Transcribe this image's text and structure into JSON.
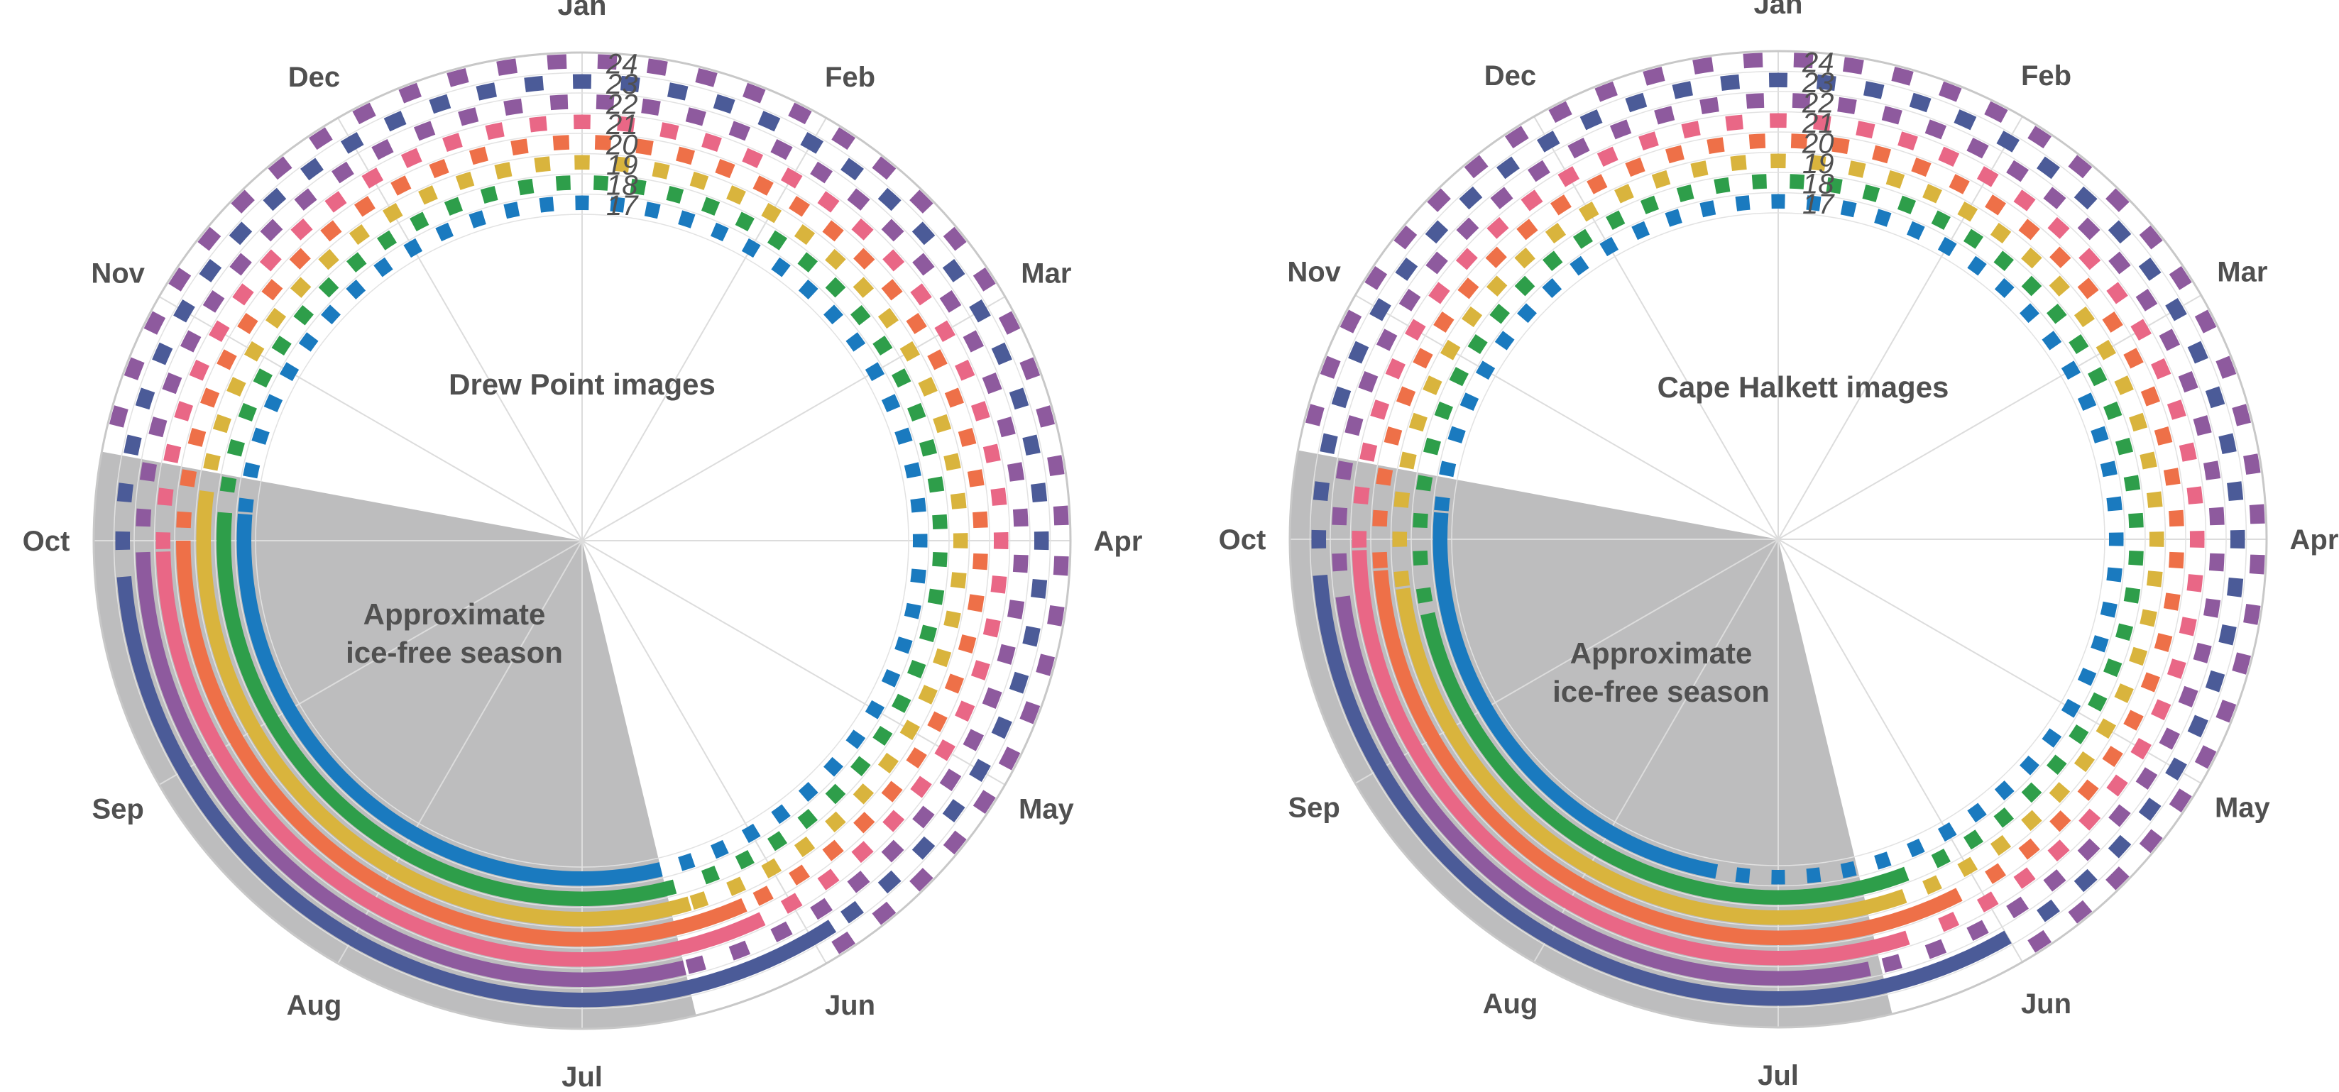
{
  "chart_data": [
    {
      "type": "polar-timeline",
      "title": "Drew Point images",
      "annotation_lines": [
        "Approximate",
        "ice-free season"
      ],
      "month_labels": [
        "Jan",
        "Feb",
        "Mar",
        "Apr",
        "May",
        "Jun",
        "Jul",
        "Aug",
        "Sep",
        "Oct",
        "Nov",
        "Dec"
      ],
      "year_labels": [
        "17",
        "18",
        "19",
        "20",
        "21",
        "22",
        "23",
        "24"
      ],
      "ice_free_season": {
        "start_month": 6.55,
        "end_month": 10.35
      },
      "series": [
        {
          "year": "17",
          "color": "#1a7abf",
          "continuous": [
            [
              6.55,
              10.15
            ]
          ]
        },
        {
          "year": "18",
          "color": "#2e9e4a",
          "continuous": [
            [
              6.5,
              10.15
            ]
          ]
        },
        {
          "year": "19",
          "color": "#d9b43d",
          "continuous": [
            [
              6.45,
              10.25
            ]
          ]
        },
        {
          "year": "20",
          "color": "#ee7048",
          "continuous": [
            [
              6.2,
              10.0
            ]
          ]
        },
        {
          "year": "21",
          "color": "#e96786",
          "continuous": [
            [
              6.15,
              9.95
            ]
          ]
        },
        {
          "year": "22",
          "color": "#8e5a9e",
          "continuous": [
            [
              6.55,
              9.95
            ]
          ]
        },
        {
          "year": "23",
          "color": "#4b5b98",
          "continuous": [
            [
              5.9,
              9.85
            ]
          ]
        }
      ]
    },
    {
      "type": "polar-timeline",
      "title": "Cape Halkett images",
      "annotation_lines": [
        "Approximate",
        "ice-free season"
      ],
      "month_labels": [
        "Jan",
        "Feb",
        "Mar",
        "Apr",
        "May",
        "Jun",
        "Jul",
        "Aug",
        "Sep",
        "Oct",
        "Nov",
        "Dec"
      ],
      "year_labels": [
        "17",
        "18",
        "19",
        "20",
        "21",
        "22",
        "23",
        "24"
      ],
      "ice_free_season": {
        "start_month": 6.55,
        "end_month": 10.35
      },
      "series": [
        {
          "year": "17",
          "color": "#1a7abf",
          "continuous": [
            [
              7.35,
              10.15
            ]
          ]
        },
        {
          "year": "18",
          "color": "#2e9e4a",
          "continuous": [
            [
              6.3,
              9.6
            ]
          ]
        },
        {
          "year": "19",
          "color": "#d9b43d",
          "continuous": [
            [
              6.35,
              9.75
            ]
          ]
        },
        {
          "year": "20",
          "color": "#ee7048",
          "continuous": [
            [
              6.1,
              9.85
            ]
          ]
        },
        {
          "year": "21",
          "color": "#e96786",
          "continuous": [
            [
              6.4,
              9.95
            ]
          ]
        },
        {
          "year": "22",
          "color": "#8e5a9e",
          "continuous": [
            [
              6.6,
              9.75
            ]
          ]
        },
        {
          "year": "23",
          "color": "#4b5b98",
          "continuous": [
            [
              6.0,
              9.85
            ]
          ]
        }
      ]
    }
  ]
}
